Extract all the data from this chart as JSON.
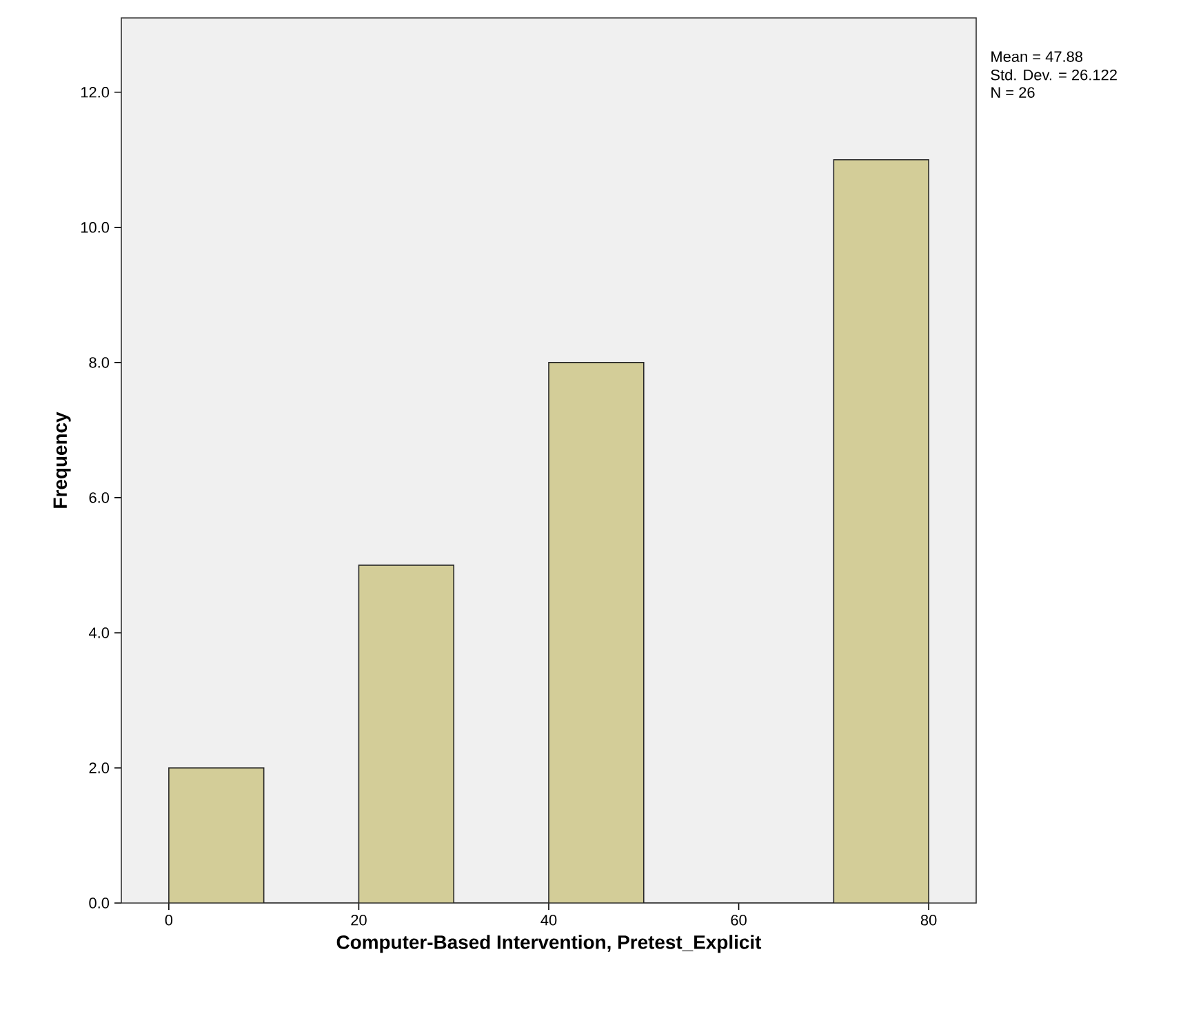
{
  "chart_data": {
    "type": "histogram",
    "xlabel": "Computer-Based Intervention, Pretest_Explicit",
    "ylabel": "Frequency",
    "bins": [
      0,
      10,
      20,
      30,
      40,
      50,
      60,
      70,
      80
    ],
    "values": [
      2,
      0,
      5,
      0,
      8,
      0,
      0,
      11
    ],
    "color": "#d3cd98",
    "xlim": [
      -5,
      85
    ],
    "ylim": [
      0,
      13.1
    ],
    "xticks": [
      0,
      20,
      40,
      60,
      80
    ],
    "yticks": [
      {
        "value": 0,
        "label": "0.0"
      },
      {
        "value": 2,
        "label": "2.0"
      },
      {
        "value": 4,
        "label": "4.0"
      },
      {
        "value": 6,
        "label": "6.0"
      },
      {
        "value": 8,
        "label": "8.0"
      },
      {
        "value": 10,
        "label": "10.0"
      },
      {
        "value": 12,
        "label": "12.0"
      }
    ],
    "annotations": [
      "Mean = 47.88",
      "Std. Dev. = 26.122",
      "N = 26"
    ]
  }
}
